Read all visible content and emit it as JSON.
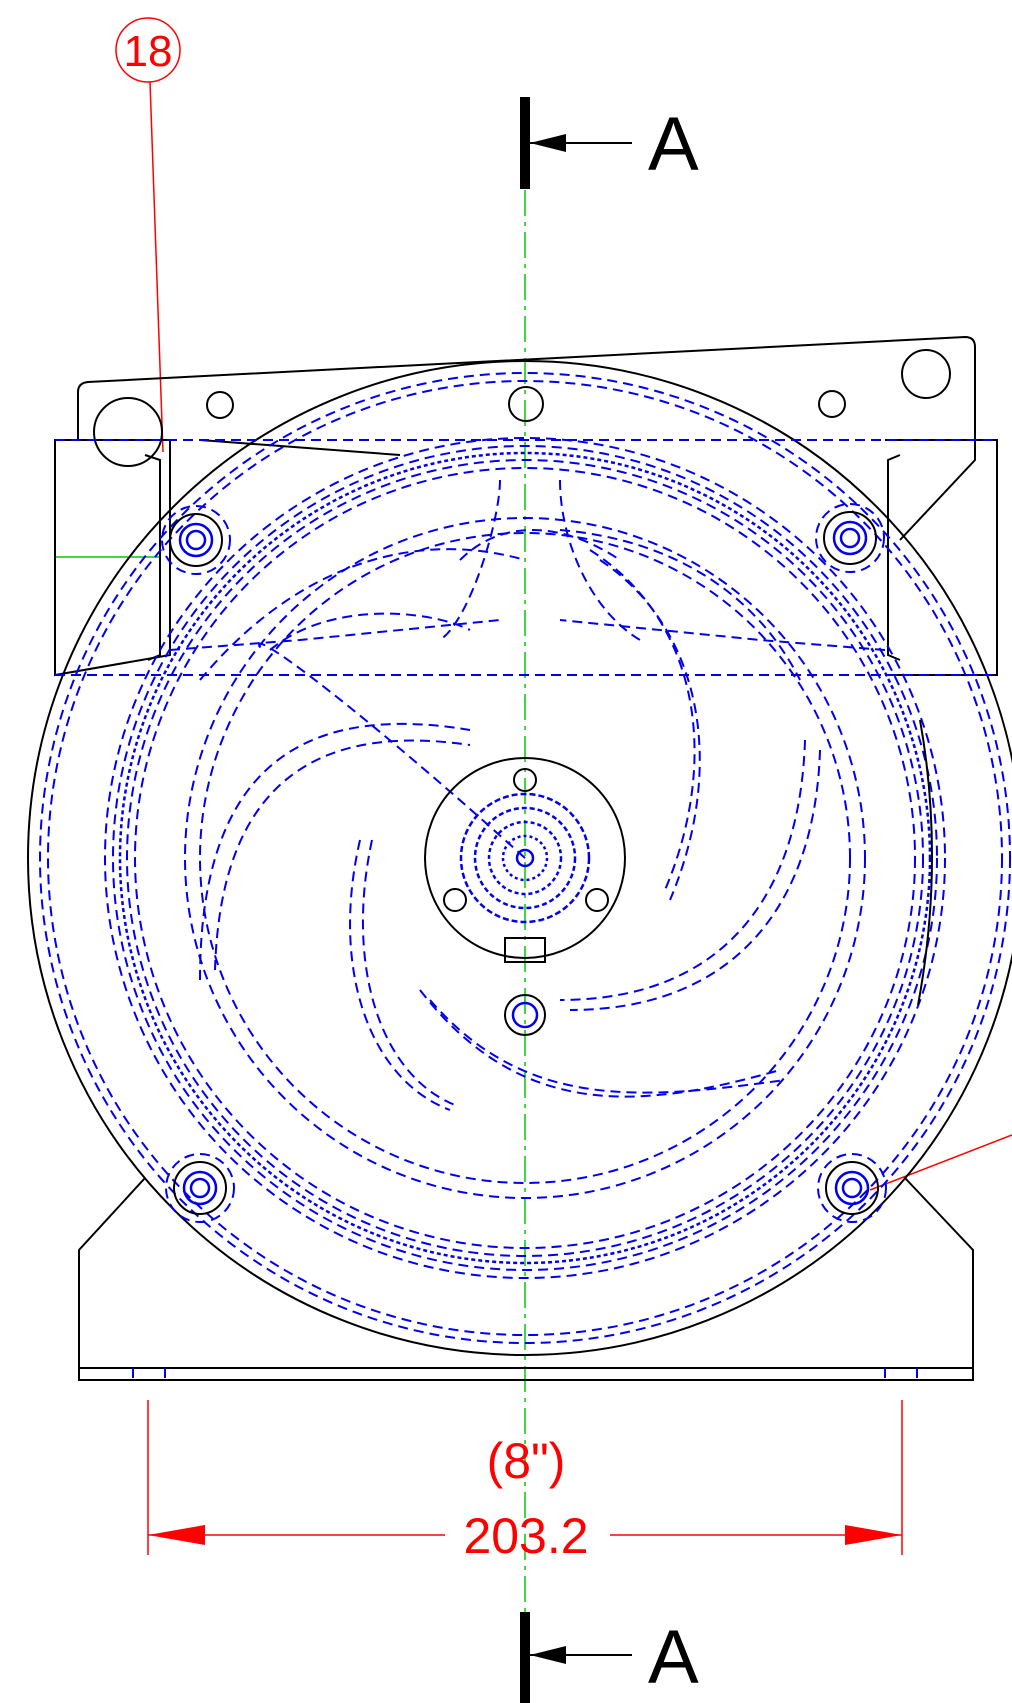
{
  "section_marker": {
    "top_label": "A",
    "bottom_label": "A"
  },
  "balloon": {
    "number": "18"
  },
  "dimension": {
    "inches": "(8\")",
    "millimeters": "203.2"
  },
  "colors": {
    "outline": "#000000",
    "hidden_lines": "#0000ee",
    "centerline": "#00cc00",
    "annotation": "#ff0000"
  }
}
